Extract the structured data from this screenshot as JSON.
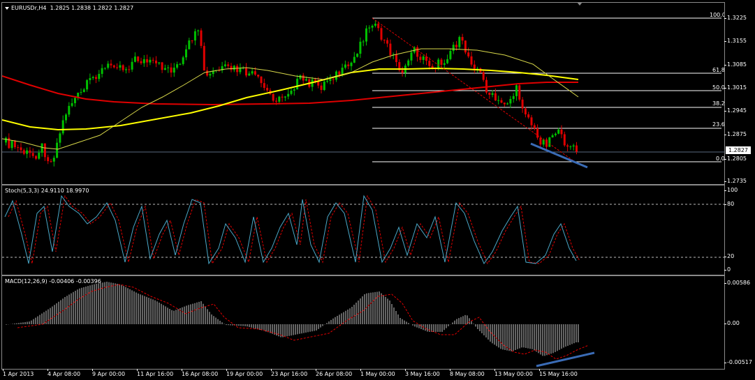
{
  "symbol_title": "EURUSDr,H4",
  "ohlc": "1.2825 1.2838 1.2822 1.2827",
  "current_price": "1.2827",
  "price_ticks": [
    "1.3225",
    "1.3155",
    "1.3085",
    "1.3015",
    "1.2945",
    "1.2875",
    "1.2805",
    "1.2735"
  ],
  "fib_levels": [
    "100.0",
    "61.8",
    "50.0",
    "38.2",
    "23.6",
    "0.0"
  ],
  "stoch": {
    "title": "Stoch(5,3,3) 24.9110 18.9970",
    "ticks": [
      "100",
      "80",
      "20",
      "0"
    ]
  },
  "macd": {
    "title": "MACD(12,26,9) -0.00406 -0.00396",
    "ticks": [
      "0.00586",
      "0.00",
      "-0.00517"
    ]
  },
  "time_labels": [
    "1 Apr 2013",
    "4 Apr 08:00",
    "9 Apr 00:00",
    "11 Apr 16:00",
    "16 Apr 08:00",
    "19 Apr 00:00",
    "23 Apr 16:00",
    "26 Apr 08:00",
    "1 May 00:00",
    "3 May 16:00",
    "8 May 08:00",
    "13 May 00:00",
    "15 May 16:00"
  ],
  "colors": {
    "background": "#000000",
    "bull_candle": "#00c000",
    "bear_candle": "#e00000",
    "ma_red": "#e00000",
    "ma_yellow": "#ffff00",
    "ma_thin_yellow": "#d8d84a",
    "stoch_main": "#4aa8c8",
    "stoch_signal": "#e00000",
    "macd_hist": "#c8c8c8",
    "trend_blue": "#3a6bb5",
    "fib": "#ffffff"
  }
}
